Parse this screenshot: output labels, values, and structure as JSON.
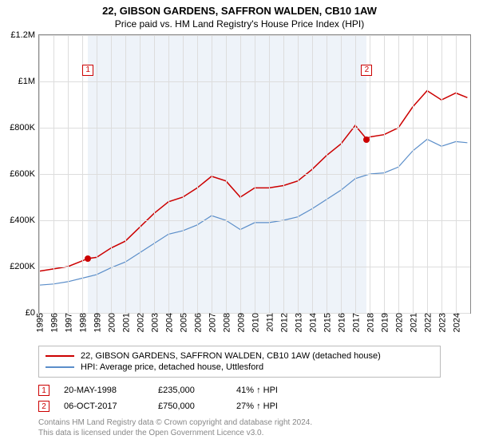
{
  "title": "22, GIBSON GARDENS, SAFFRON WALDEN, CB10 1AW",
  "subtitle": "Price paid vs. HM Land Registry's House Price Index (HPI)",
  "chart": {
    "type": "line",
    "background_color": "#ffffff",
    "shade_color": "#eef3f9",
    "grid_color": "#dddddd",
    "border_color": "#888888",
    "x_range": [
      1995,
      2025
    ],
    "y_range": [
      0,
      1200000
    ],
    "y_ticks": [
      0,
      200000,
      400000,
      600000,
      800000,
      1000000,
      1200000
    ],
    "y_tick_labels": [
      "£0",
      "£200K",
      "£400K",
      "£600K",
      "£800K",
      "£1M",
      "£1.2M"
    ],
    "x_ticks": [
      1995,
      1996,
      1997,
      1998,
      1999,
      2000,
      2001,
      2002,
      2003,
      2004,
      2005,
      2006,
      2007,
      2008,
      2009,
      2010,
      2011,
      2012,
      2013,
      2014,
      2015,
      2016,
      2017,
      2018,
      2019,
      2020,
      2021,
      2022,
      2023,
      2024
    ],
    "shade_span": [
      1998.4,
      2017.8
    ],
    "series": [
      {
        "name": "price_paid",
        "label": "22, GIBSON GARDENS, SAFFRON WALDEN, CB10 1AW (detached house)",
        "color": "#cc0000",
        "line_width": 1.5,
        "points": [
          [
            1995,
            180000
          ],
          [
            1996,
            190000
          ],
          [
            1997,
            200000
          ],
          [
            1998,
            225000
          ],
          [
            1998.4,
            235000
          ],
          [
            1999,
            240000
          ],
          [
            2000,
            280000
          ],
          [
            2001,
            310000
          ],
          [
            2002,
            370000
          ],
          [
            2003,
            430000
          ],
          [
            2004,
            480000
          ],
          [
            2005,
            500000
          ],
          [
            2006,
            540000
          ],
          [
            2007,
            590000
          ],
          [
            2008,
            570000
          ],
          [
            2009,
            500000
          ],
          [
            2010,
            540000
          ],
          [
            2011,
            540000
          ],
          [
            2012,
            550000
          ],
          [
            2013,
            570000
          ],
          [
            2014,
            620000
          ],
          [
            2015,
            680000
          ],
          [
            2016,
            730000
          ],
          [
            2017,
            810000
          ],
          [
            2017.8,
            750000
          ],
          [
            2018,
            760000
          ],
          [
            2019,
            770000
          ],
          [
            2020,
            800000
          ],
          [
            2021,
            890000
          ],
          [
            2022,
            960000
          ],
          [
            2023,
            920000
          ],
          [
            2024,
            950000
          ],
          [
            2024.8,
            930000
          ]
        ]
      },
      {
        "name": "hpi",
        "label": "HPI: Average price, detached house, Uttlesford",
        "color": "#5b8ec9",
        "line_width": 1.2,
        "points": [
          [
            1995,
            120000
          ],
          [
            1996,
            125000
          ],
          [
            1997,
            135000
          ],
          [
            1998,
            150000
          ],
          [
            1999,
            165000
          ],
          [
            2000,
            195000
          ],
          [
            2001,
            220000
          ],
          [
            2002,
            260000
          ],
          [
            2003,
            300000
          ],
          [
            2004,
            340000
          ],
          [
            2005,
            355000
          ],
          [
            2006,
            380000
          ],
          [
            2007,
            420000
          ],
          [
            2008,
            400000
          ],
          [
            2009,
            360000
          ],
          [
            2010,
            390000
          ],
          [
            2011,
            390000
          ],
          [
            2012,
            400000
          ],
          [
            2013,
            415000
          ],
          [
            2014,
            450000
          ],
          [
            2015,
            490000
          ],
          [
            2016,
            530000
          ],
          [
            2017,
            580000
          ],
          [
            2018,
            600000
          ],
          [
            2019,
            605000
          ],
          [
            2020,
            630000
          ],
          [
            2021,
            700000
          ],
          [
            2022,
            750000
          ],
          [
            2023,
            720000
          ],
          [
            2024,
            740000
          ],
          [
            2024.8,
            735000
          ]
        ]
      }
    ],
    "sale_markers": [
      {
        "id": "1",
        "x": 1998.4,
        "y": 235000,
        "box_y": 1050000
      },
      {
        "id": "2",
        "x": 2017.8,
        "y": 750000,
        "box_y": 1050000
      }
    ]
  },
  "legend": {
    "items": [
      {
        "color": "#cc0000",
        "label": "22, GIBSON GARDENS, SAFFRON WALDEN, CB10 1AW (detached house)"
      },
      {
        "color": "#5b8ec9",
        "label": "HPI: Average price, detached house, Uttlesford"
      }
    ]
  },
  "sales": [
    {
      "id": "1",
      "date": "20-MAY-1998",
      "price": "£235,000",
      "diff": "41% ↑ HPI"
    },
    {
      "id": "2",
      "date": "06-OCT-2017",
      "price": "£750,000",
      "diff": "27% ↑ HPI"
    }
  ],
  "footer": {
    "line1": "Contains HM Land Registry data © Crown copyright and database right 2024.",
    "line2": "This data is licensed under the Open Government Licence v3.0."
  }
}
